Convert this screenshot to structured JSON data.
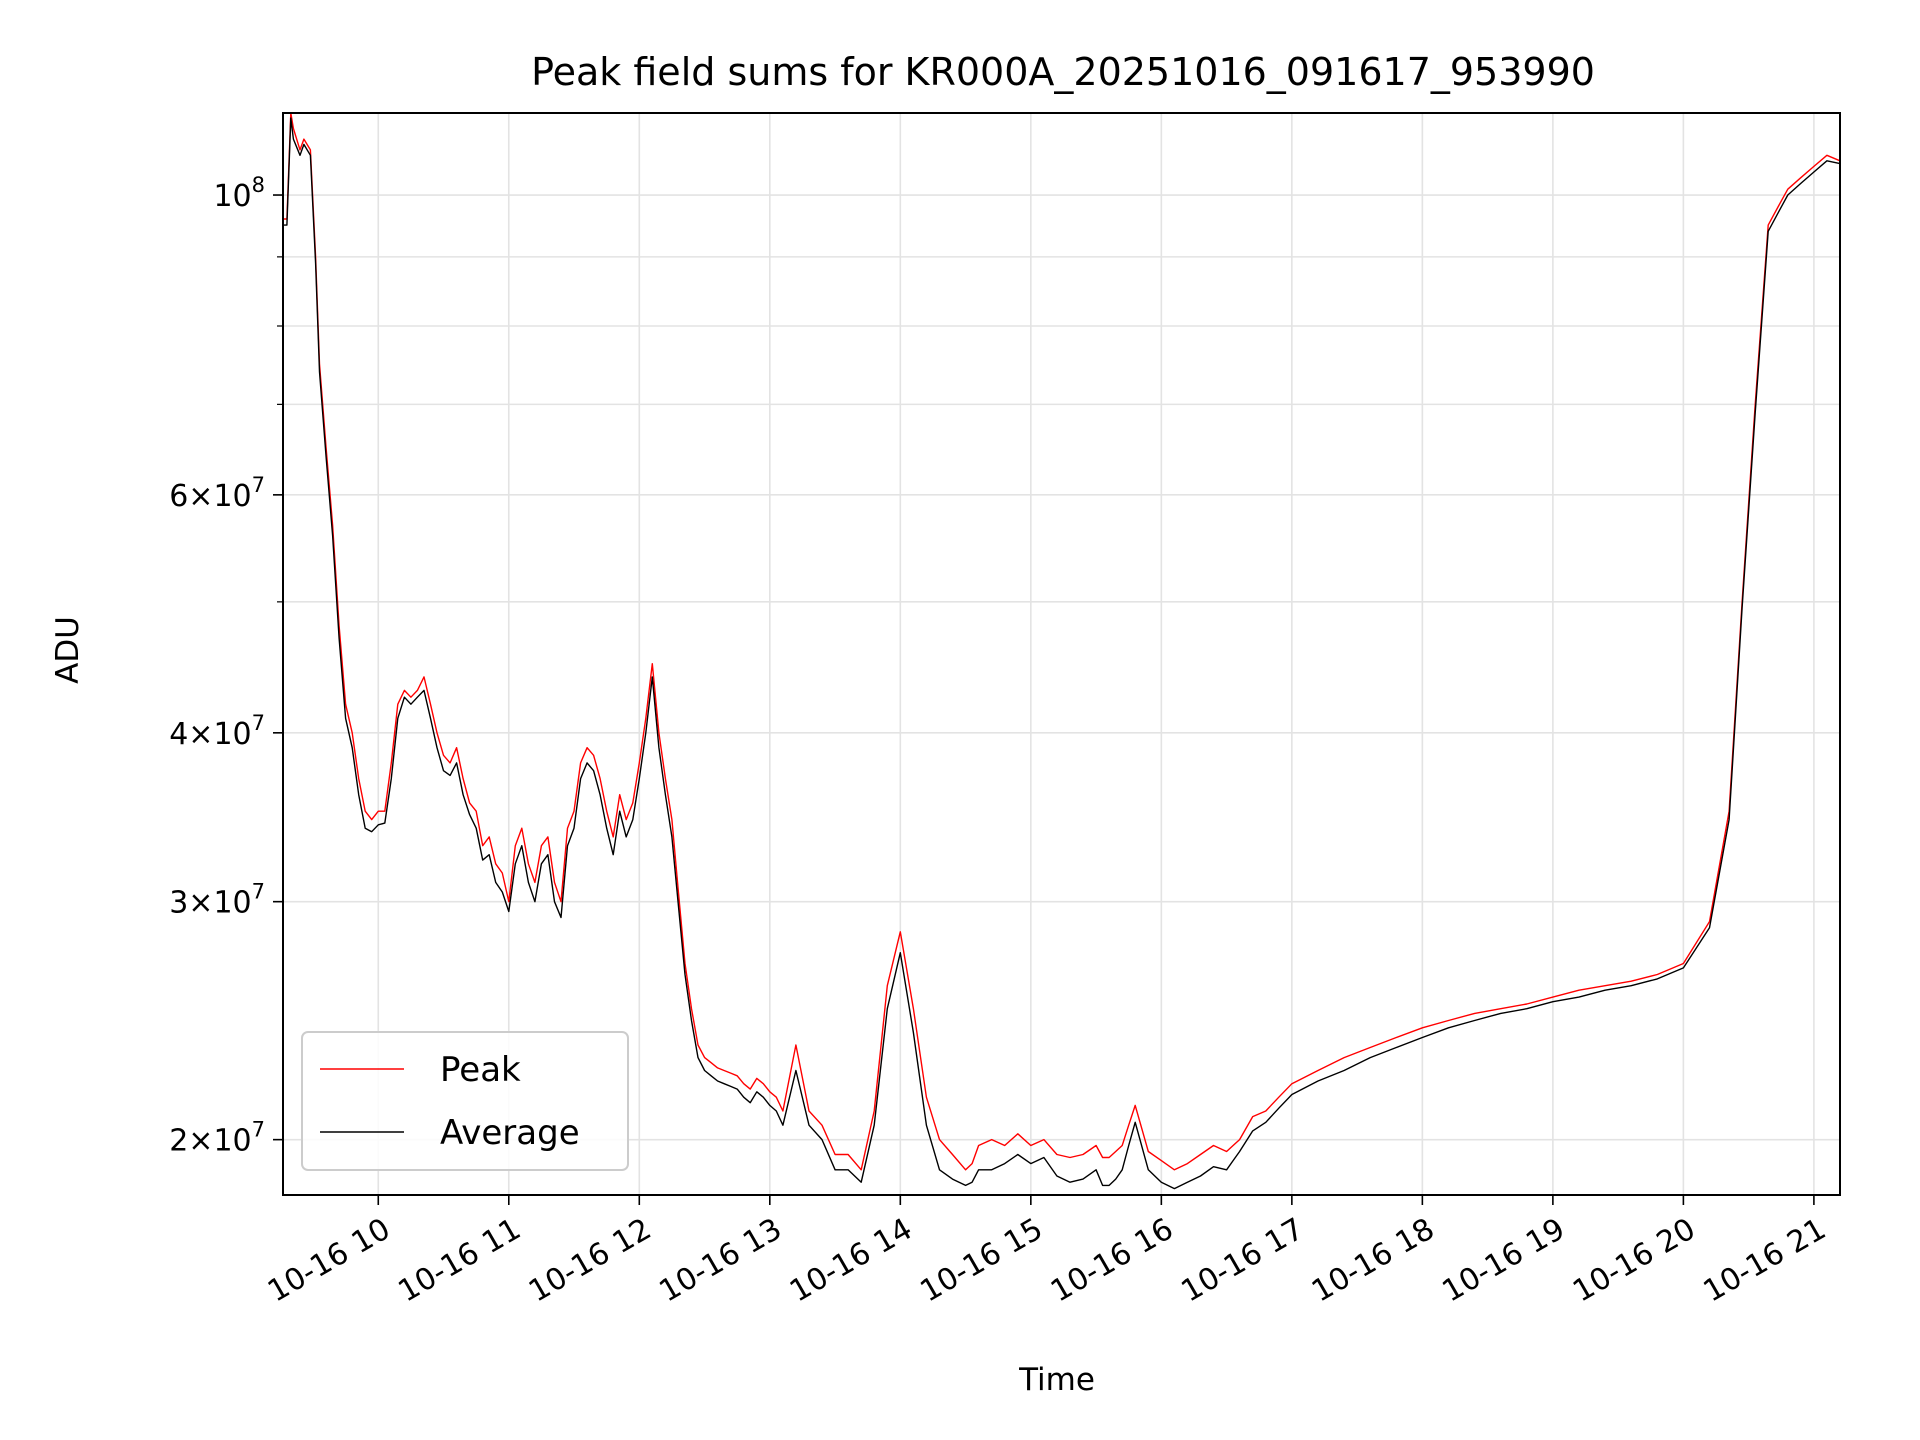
{
  "chart_data": {
    "type": "line",
    "title": "Peak field sums for KR000A_20251016_091617_953990",
    "xlabel": "Time",
    "ylabel": "ADU",
    "yscale": "log",
    "ylim": [
      18200000,
      115000000
    ],
    "xlim_hours": [
      9.27,
      21.2
    ],
    "grid": true,
    "legend_position": "lower-left",
    "x_ticks": [
      {
        "value": 10,
        "label": "10-16 10"
      },
      {
        "value": 11,
        "label": "10-16 11"
      },
      {
        "value": 12,
        "label": "10-16 12"
      },
      {
        "value": 13,
        "label": "10-16 13"
      },
      {
        "value": 14,
        "label": "10-16 14"
      },
      {
        "value": 15,
        "label": "10-16 15"
      },
      {
        "value": 16,
        "label": "10-16 16"
      },
      {
        "value": 17,
        "label": "10-16 17"
      },
      {
        "value": 18,
        "label": "10-16 18"
      },
      {
        "value": 19,
        "label": "10-16 19"
      },
      {
        "value": 20,
        "label": "10-16 20"
      },
      {
        "value": 21,
        "label": "10-16 21"
      }
    ],
    "y_ticks": [
      {
        "value": 20000000,
        "base": "2×10",
        "exp": "7"
      },
      {
        "value": 30000000,
        "base": "3×10",
        "exp": "7"
      },
      {
        "value": 40000000,
        "base": "4×10",
        "exp": "7"
      },
      {
        "value": 60000000,
        "base": "6×10",
        "exp": "7"
      },
      {
        "value": 100000000,
        "base": "10",
        "exp": "8"
      }
    ],
    "y_minor_ticks": [
      50000000,
      70000000,
      80000000,
      90000000
    ],
    "series": [
      {
        "name": "Peak",
        "color": "#ff0000",
        "x": [
          9.27,
          9.3,
          9.33,
          9.35,
          9.4,
          9.43,
          9.48,
          9.52,
          9.55,
          9.6,
          9.65,
          9.7,
          9.75,
          9.8,
          9.85,
          9.9,
          9.95,
          10.0,
          10.05,
          10.1,
          10.15,
          10.2,
          10.25,
          10.3,
          10.35,
          10.4,
          10.45,
          10.5,
          10.55,
          10.6,
          10.65,
          10.7,
          10.75,
          10.8,
          10.85,
          10.9,
          10.95,
          11.0,
          11.05,
          11.1,
          11.15,
          11.2,
          11.25,
          11.3,
          11.35,
          11.4,
          11.45,
          11.5,
          11.55,
          11.6,
          11.65,
          11.7,
          11.75,
          11.8,
          11.85,
          11.9,
          11.95,
          12.0,
          12.05,
          12.1,
          12.15,
          12.2,
          12.25,
          12.3,
          12.35,
          12.4,
          12.45,
          12.5,
          12.55,
          12.6,
          12.65,
          12.7,
          12.75,
          12.8,
          12.85,
          12.9,
          12.95,
          13.0,
          13.05,
          13.1,
          13.2,
          13.3,
          13.4,
          13.5,
          13.6,
          13.7,
          13.8,
          13.9,
          14.0,
          14.1,
          14.2,
          14.3,
          14.4,
          14.5,
          14.55,
          14.6,
          14.7,
          14.8,
          14.9,
          15.0,
          15.1,
          15.2,
          15.3,
          15.4,
          15.5,
          15.55,
          15.6,
          15.65,
          15.7,
          15.75,
          15.8,
          15.9,
          16.0,
          16.1,
          16.2,
          16.3,
          16.4,
          16.5,
          16.55,
          16.6,
          16.7,
          16.8,
          16.9,
          17.0,
          17.2,
          17.4,
          17.6,
          17.8,
          18.0,
          18.2,
          18.4,
          18.6,
          18.8,
          19.0,
          19.2,
          19.4,
          19.6,
          19.8,
          20.0,
          20.2,
          20.35,
          20.45,
          20.55,
          20.65,
          20.75,
          20.8,
          20.9,
          21.0,
          21.1,
          21.2
        ],
        "y": [
          96000000,
          96000000,
          115000000,
          112000000,
          108000000,
          110000000,
          108000000,
          90000000,
          75000000,
          65000000,
          57000000,
          48000000,
          42000000,
          40000000,
          37000000,
          35000000,
          34500000,
          35000000,
          35000000,
          38000000,
          42000000,
          43000000,
          42500000,
          43000000,
          44000000,
          42000000,
          40000000,
          38500000,
          38000000,
          39000000,
          37000000,
          35500000,
          35000000,
          33000000,
          33500000,
          32000000,
          31500000,
          30000000,
          33000000,
          34000000,
          32000000,
          31000000,
          33000000,
          33500000,
          31000000,
          30000000,
          34000000,
          35000000,
          38000000,
          39000000,
          38500000,
          37000000,
          35000000,
          33500000,
          36000000,
          34500000,
          35500000,
          38000000,
          41000000,
          45000000,
          40000000,
          37000000,
          34500000,
          30500000,
          27000000,
          25000000,
          23500000,
          23000000,
          22800000,
          22600000,
          22500000,
          22400000,
          22300000,
          22000000,
          21800000,
          22200000,
          22000000,
          21700000,
          21500000,
          21000000,
          23500000,
          21000000,
          20500000,
          19500000,
          19500000,
          19000000,
          21000000,
          26000000,
          28500000,
          25000000,
          21500000,
          20000000,
          19500000,
          19000000,
          19200000,
          19800000,
          20000000,
          19800000,
          20200000,
          19800000,
          20000000,
          19500000,
          19400000,
          19500000,
          19800000,
          19400000,
          19400000,
          19600000,
          19800000,
          20500000,
          21200000,
          19600000,
          19300000,
          19000000,
          19200000,
          19500000,
          19800000,
          19600000,
          19800000,
          20000000,
          20800000,
          21000000,
          21500000,
          22000000,
          22500000,
          23000000,
          23400000,
          23800000,
          24200000,
          24500000,
          24800000,
          25000000,
          25200000,
          25500000,
          25800000,
          26000000,
          26200000,
          26500000,
          27000000,
          29000000,
          35000000,
          50000000,
          70000000,
          95000000,
          99000000,
          101000000,
          103000000,
          105000000,
          107000000,
          106000000
        ]
      },
      {
        "name": "Average",
        "color": "#000000",
        "x": [
          9.27,
          9.3,
          9.33,
          9.35,
          9.4,
          9.43,
          9.48,
          9.52,
          9.55,
          9.6,
          9.65,
          9.7,
          9.75,
          9.8,
          9.85,
          9.9,
          9.95,
          10.0,
          10.05,
          10.1,
          10.15,
          10.2,
          10.25,
          10.3,
          10.35,
          10.4,
          10.45,
          10.5,
          10.55,
          10.6,
          10.65,
          10.7,
          10.75,
          10.8,
          10.85,
          10.9,
          10.95,
          11.0,
          11.05,
          11.1,
          11.15,
          11.2,
          11.25,
          11.3,
          11.35,
          11.4,
          11.45,
          11.5,
          11.55,
          11.6,
          11.65,
          11.7,
          11.75,
          11.8,
          11.85,
          11.9,
          11.95,
          12.0,
          12.05,
          12.1,
          12.15,
          12.2,
          12.25,
          12.3,
          12.35,
          12.4,
          12.45,
          12.5,
          12.55,
          12.6,
          12.65,
          12.7,
          12.75,
          12.8,
          12.85,
          12.9,
          12.95,
          13.0,
          13.05,
          13.1,
          13.2,
          13.3,
          13.4,
          13.5,
          13.6,
          13.7,
          13.8,
          13.9,
          14.0,
          14.1,
          14.2,
          14.3,
          14.4,
          14.5,
          14.55,
          14.6,
          14.7,
          14.8,
          14.9,
          15.0,
          15.1,
          15.2,
          15.3,
          15.4,
          15.5,
          15.55,
          15.6,
          15.65,
          15.7,
          15.75,
          15.8,
          15.9,
          16.0,
          16.1,
          16.2,
          16.3,
          16.4,
          16.5,
          16.55,
          16.6,
          16.7,
          16.8,
          16.9,
          17.0,
          17.2,
          17.4,
          17.6,
          17.8,
          18.0,
          18.2,
          18.4,
          18.6,
          18.8,
          19.0,
          19.2,
          19.4,
          19.6,
          19.8,
          20.0,
          20.2,
          20.35,
          20.45,
          20.55,
          20.65,
          20.75,
          20.8,
          20.9,
          21.0,
          21.1,
          21.2
        ],
        "y": [
          95000000,
          95000000,
          114000000,
          110000000,
          107000000,
          109000000,
          107000000,
          89000000,
          74000000,
          64000000,
          56000000,
          47000000,
          41000000,
          39000000,
          36000000,
          34000000,
          33800000,
          34200000,
          34300000,
          37000000,
          41000000,
          42500000,
          42000000,
          42500000,
          43000000,
          41000000,
          39000000,
          37500000,
          37200000,
          38000000,
          36000000,
          34800000,
          34000000,
          32200000,
          32500000,
          31000000,
          30500000,
          29500000,
          32000000,
          33000000,
          31000000,
          30000000,
          32000000,
          32500000,
          30000000,
          29200000,
          33000000,
          34000000,
          37000000,
          38000000,
          37500000,
          36000000,
          34000000,
          32500000,
          35000000,
          33500000,
          34500000,
          37000000,
          40000000,
          44000000,
          39000000,
          36000000,
          33500000,
          29800000,
          26500000,
          24500000,
          23000000,
          22500000,
          22300000,
          22100000,
          22000000,
          21900000,
          21800000,
          21500000,
          21300000,
          21700000,
          21500000,
          21200000,
          21000000,
          20500000,
          22500000,
          20500000,
          20000000,
          19000000,
          19000000,
          18600000,
          20500000,
          25000000,
          27500000,
          24000000,
          20500000,
          19000000,
          18700000,
          18500000,
          18600000,
          19000000,
          19000000,
          19200000,
          19500000,
          19200000,
          19400000,
          18800000,
          18600000,
          18700000,
          19000000,
          18500000,
          18500000,
          18700000,
          19000000,
          19800000,
          20600000,
          19000000,
          18600000,
          18400000,
          18600000,
          18800000,
          19100000,
          19000000,
          19300000,
          19600000,
          20300000,
          20600000,
          21100000,
          21600000,
          22100000,
          22500000,
          23000000,
          23400000,
          23800000,
          24200000,
          24500000,
          24800000,
          25000000,
          25300000,
          25500000,
          25800000,
          26000000,
          26300000,
          26800000,
          28700000,
          34500000,
          49500000,
          69000000,
          94000000,
          98000000,
          100000000,
          102000000,
          104000000,
          106000000,
          105500000
        ]
      }
    ]
  }
}
